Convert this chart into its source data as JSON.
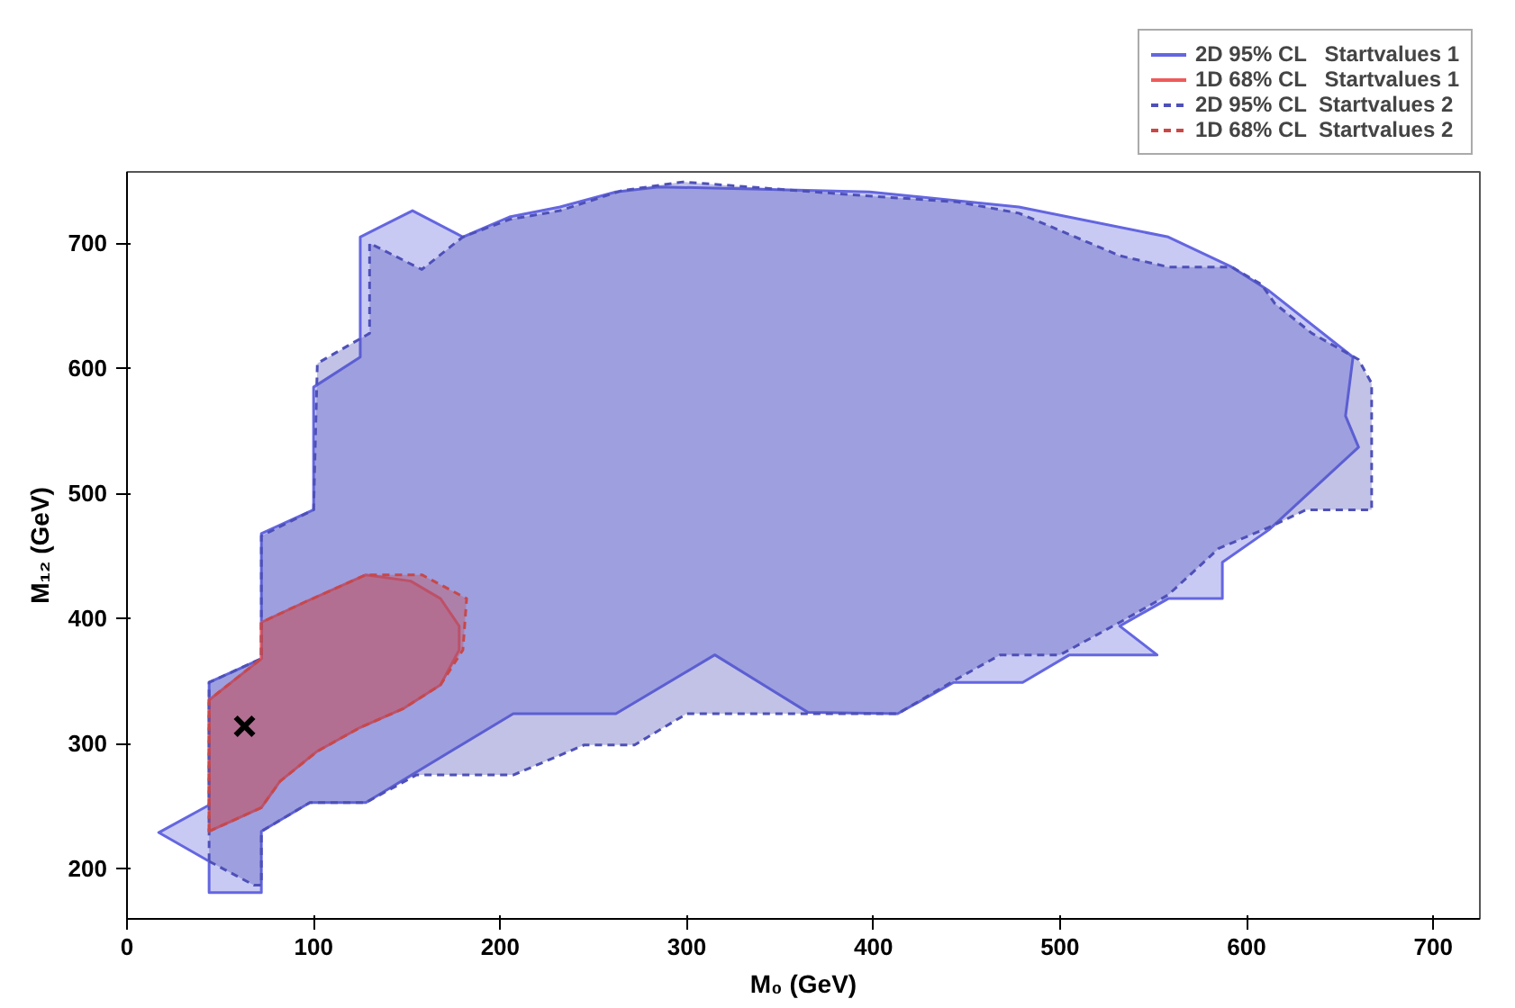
{
  "chart_data": {
    "type": "area",
    "xlabel": "M₀ (GeV)",
    "ylabel": "M₁₂ (GeV)",
    "xlim": [
      0,
      725
    ],
    "ylim": [
      160,
      757
    ],
    "xticks": [
      0,
      100,
      200,
      300,
      400,
      500,
      600,
      700
    ],
    "yticks": [
      200,
      300,
      400,
      500,
      600,
      700
    ],
    "grid": false,
    "legend": "top right",
    "series": [
      {
        "name": "2D 95% CL   Startvalues 1",
        "color": "#6466e0",
        "line_style": "solid",
        "x": [
          44,
          17,
          44,
          44,
          72,
          72,
          98,
          128,
          207,
          262,
          315,
          365,
          413,
          443,
          480,
          505,
          552,
          532,
          558,
          587,
          587,
          612,
          660,
          653,
          657,
          612,
          592,
          558,
          478,
          398,
          345,
          285,
          262,
          232,
          205,
          180,
          153,
          125,
          125,
          100,
          100,
          72,
          72,
          44
        ],
        "values": [
          251,
          229,
          206,
          181,
          181,
          230,
          253,
          253,
          324,
          324,
          371,
          325,
          324,
          349,
          349,
          371,
          371,
          394,
          416,
          416,
          445,
          471,
          537,
          562,
          609,
          662,
          681,
          705,
          729,
          741,
          743,
          745,
          741,
          729,
          721,
          705,
          726,
          705,
          609,
          585,
          487,
          468,
          368,
          349
        ]
      },
      {
        "name": "1D 68% CL   Startvalues 1",
        "color": "#f05a5a",
        "line_style": "solid",
        "x": [
          44,
          44,
          72,
          72,
          95,
          128,
          152,
          168,
          178,
          178,
          168,
          148,
          125,
          102,
          82,
          72
        ],
        "values": [
          230,
          335,
          368,
          397,
          413,
          435,
          430,
          416,
          394,
          375,
          347,
          328,
          313,
          294,
          270,
          249
        ]
      },
      {
        "name": "2D 95% CL  Startvalues 2",
        "color": "#4e50b8",
        "line_style": "dashed",
        "x": [
          44,
          68,
          72,
          72,
          98,
          128,
          155,
          207,
          245,
          272,
          300,
          413,
          445,
          468,
          500,
          532,
          558,
          585,
          612,
          632,
          667,
          667,
          660,
          635,
          615,
          608,
          592,
          558,
          532,
          478,
          445,
          395,
          298,
          265,
          232,
          205,
          180,
          158,
          130,
          130,
          102,
          100,
          72,
          72,
          44
        ],
        "values": [
          206,
          187,
          187,
          230,
          253,
          253,
          275,
          275,
          299,
          299,
          324,
          324,
          352,
          371,
          371,
          397,
          419,
          456,
          473,
          487,
          487,
          588,
          607,
          628,
          652,
          667,
          681,
          681,
          690,
          724,
          733,
          738,
          749,
          742,
          726,
          719,
          705,
          679,
          700,
          628,
          604,
          487,
          466,
          368,
          349
        ]
      },
      {
        "name": "1D 68% CL  Startvalues 2",
        "color": "#c84848",
        "line_style": "dashed",
        "x": [
          44,
          44,
          72,
          72,
          95,
          128,
          158,
          182,
          180,
          168,
          148,
          125,
          102,
          82,
          72
        ],
        "values": [
          230,
          335,
          368,
          397,
          413,
          435,
          435,
          416,
          375,
          347,
          328,
          313,
          294,
          270,
          249
        ]
      },
      {
        "type": "scatter",
        "marker": "cross",
        "color": "#000000",
        "x": [
          63
        ],
        "values": [
          314
        ]
      }
    ]
  }
}
